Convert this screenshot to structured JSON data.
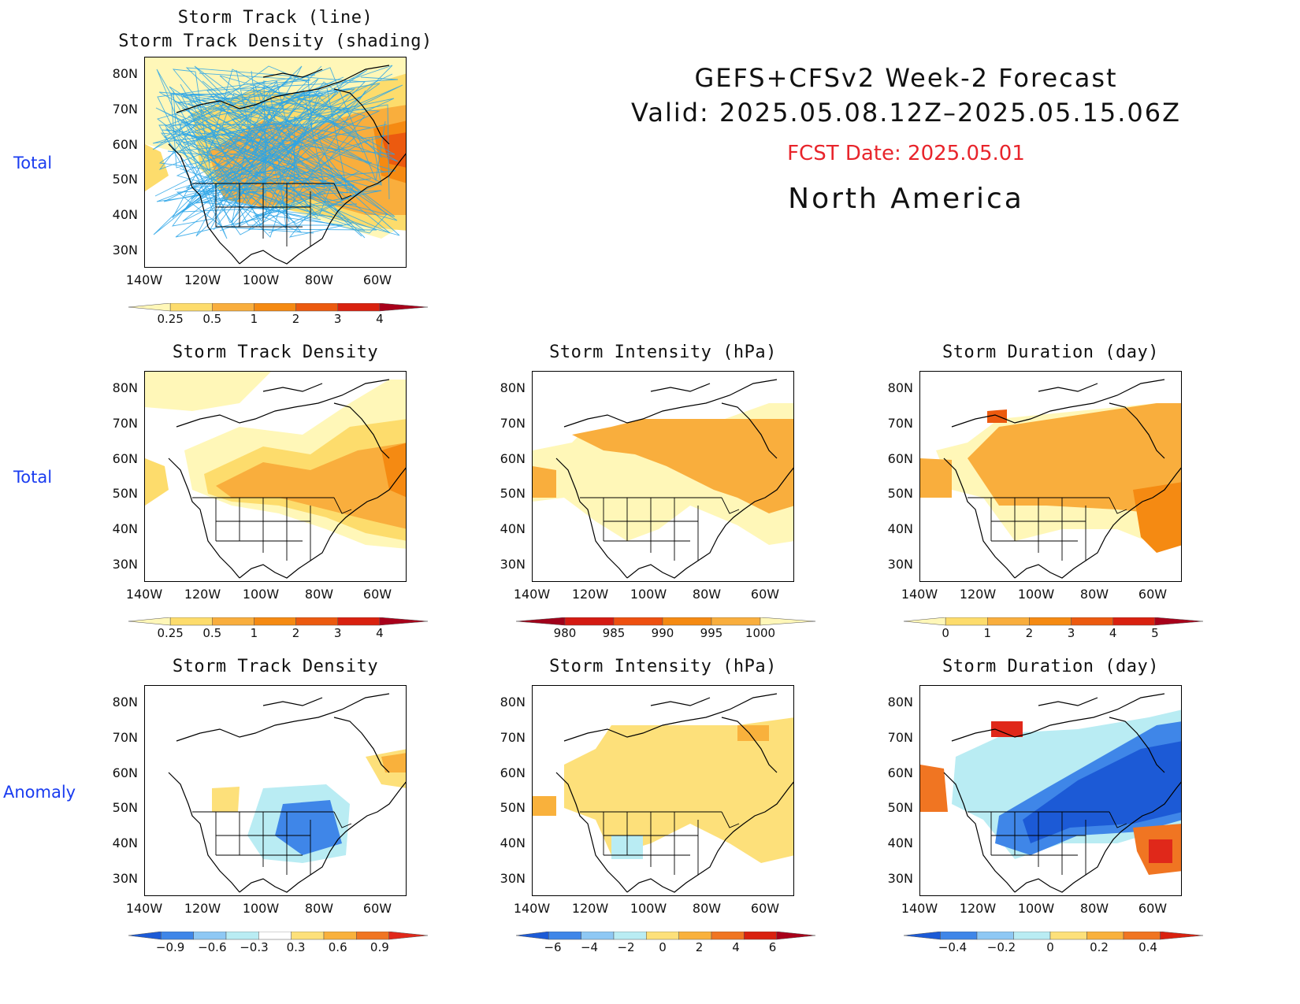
{
  "header": {
    "title": "GEFS+CFSv2 Week-2 Forecast",
    "valid": "Valid: 2025.05.08.12Z–2025.05.15.06Z",
    "fcst_date": "FCST Date: 2025.05.01",
    "region": "North America",
    "fcst_color": "#e8242b"
  },
  "row_labels": {
    "total_top": "Total",
    "total_mid": "Total",
    "anomaly": "Anomaly"
  },
  "map_axes": {
    "lat_labels": [
      "80N",
      "70N",
      "60N",
      "50N",
      "40N",
      "30N"
    ],
    "lon_labels": [
      "140W",
      "120W",
      "100W",
      "80W",
      "60W"
    ]
  },
  "panels": {
    "p_top": {
      "title": "Storm Track (line)\nStorm Track Density (shading)"
    },
    "p_mid_density": {
      "title": "Storm Track Density"
    },
    "p_mid_intensity": {
      "title": "Storm Intensity (hPa)"
    },
    "p_mid_duration": {
      "title": "Storm Duration (day)"
    },
    "p_anom_density": {
      "title": "Storm Track Density"
    },
    "p_anom_intensity": {
      "title": "Storm Intensity (hPa)"
    },
    "p_anom_duration": {
      "title": "Storm Duration (day)"
    }
  },
  "colorbars": {
    "density": {
      "labels": [
        "0.25",
        "0.5",
        "1",
        "2",
        "3",
        "4"
      ],
      "colors": [
        "#fff7b8",
        "#fddc6c",
        "#f9ae3d",
        "#f58a12",
        "#ec5a0f",
        "#d9210f",
        "#a8001a"
      ]
    },
    "intensity": {
      "labels": [
        "980",
        "985",
        "990",
        "995",
        "1000"
      ],
      "colors": [
        "#a0001a",
        "#d41a12",
        "#ee5010",
        "#f58a12",
        "#f9ae3d",
        "#fff7b8"
      ]
    },
    "duration": {
      "labels": [
        "0",
        "1",
        "2",
        "3",
        "4",
        "5"
      ],
      "colors": [
        "#fff7b8",
        "#fddc6c",
        "#f9ae3d",
        "#f58a12",
        "#ec5a0f",
        "#d9210f",
        "#a8001a"
      ]
    },
    "anom_density": {
      "labels": [
        "−0.9",
        "−0.6",
        "−0.3",
        "0.3",
        "0.6",
        "0.9"
      ],
      "colors": [
        "#1c5ad6",
        "#3f86e8",
        "#8ec8f4",
        "#b9ecf3",
        "#ffffff",
        "#fde07a",
        "#f9b13c",
        "#f07522",
        "#e0281a"
      ]
    },
    "anom_intensity": {
      "labels": [
        "−6",
        "−4",
        "−2",
        "0",
        "2",
        "4",
        "6"
      ],
      "colors": [
        "#1c5ad6",
        "#3f86e8",
        "#8ec8f4",
        "#b9ecf3",
        "#fde07a",
        "#f9b13c",
        "#f07522",
        "#d9210f",
        "#a8001a"
      ]
    },
    "anom_duration": {
      "labels": [
        "−0.4",
        "−0.2",
        "0",
        "0.2",
        "0.4"
      ],
      "colors": [
        "#1c5ad6",
        "#3f86e8",
        "#8ec8f4",
        "#b9ecf3",
        "#fde07a",
        "#f9b13c",
        "#f07522",
        "#d9210f"
      ]
    }
  },
  "chart_data": [
    {
      "type": "heatmap",
      "panel": "p_top",
      "title": "Storm Track (line) / Storm Track Density (shading)",
      "x_range": [
        "140W",
        "50W"
      ],
      "y_range": [
        "25N",
        "85N"
      ],
      "color_levels": [
        0.25,
        0.5,
        1,
        2,
        3,
        4
      ]
    },
    {
      "type": "heatmap",
      "panel": "p_mid_density",
      "title": "Storm Track Density",
      "x_range": [
        "140W",
        "50W"
      ],
      "y_range": [
        "25N",
        "85N"
      ],
      "color_levels": [
        0.25,
        0.5,
        1,
        2,
        3,
        4
      ]
    },
    {
      "type": "heatmap",
      "panel": "p_mid_intensity",
      "title": "Storm Intensity (hPa)",
      "x_range": [
        "140W",
        "50W"
      ],
      "y_range": [
        "25N",
        "85N"
      ],
      "color_levels": [
        980,
        985,
        990,
        995,
        1000
      ]
    },
    {
      "type": "heatmap",
      "panel": "p_mid_duration",
      "title": "Storm Duration (day)",
      "x_range": [
        "140W",
        "50W"
      ],
      "y_range": [
        "25N",
        "85N"
      ],
      "color_levels": [
        0,
        1,
        2,
        3,
        4,
        5
      ]
    },
    {
      "type": "heatmap",
      "panel": "p_anom_density",
      "title": "Storm Track Density",
      "x_range": [
        "140W",
        "50W"
      ],
      "y_range": [
        "25N",
        "85N"
      ],
      "color_levels": [
        -0.9,
        -0.6,
        -0.3,
        0.3,
        0.6,
        0.9
      ]
    },
    {
      "type": "heatmap",
      "panel": "p_anom_intensity",
      "title": "Storm Intensity (hPa)",
      "x_range": [
        "140W",
        "50W"
      ],
      "y_range": [
        "25N",
        "85N"
      ],
      "color_levels": [
        -6,
        -4,
        -2,
        0,
        2,
        4,
        6
      ]
    },
    {
      "type": "heatmap",
      "panel": "p_anom_duration",
      "title": "Storm Duration (day)",
      "x_range": [
        "140W",
        "50W"
      ],
      "y_range": [
        "25N",
        "85N"
      ],
      "color_levels": [
        -0.4,
        -0.2,
        0,
        0.2,
        0.4
      ]
    }
  ]
}
